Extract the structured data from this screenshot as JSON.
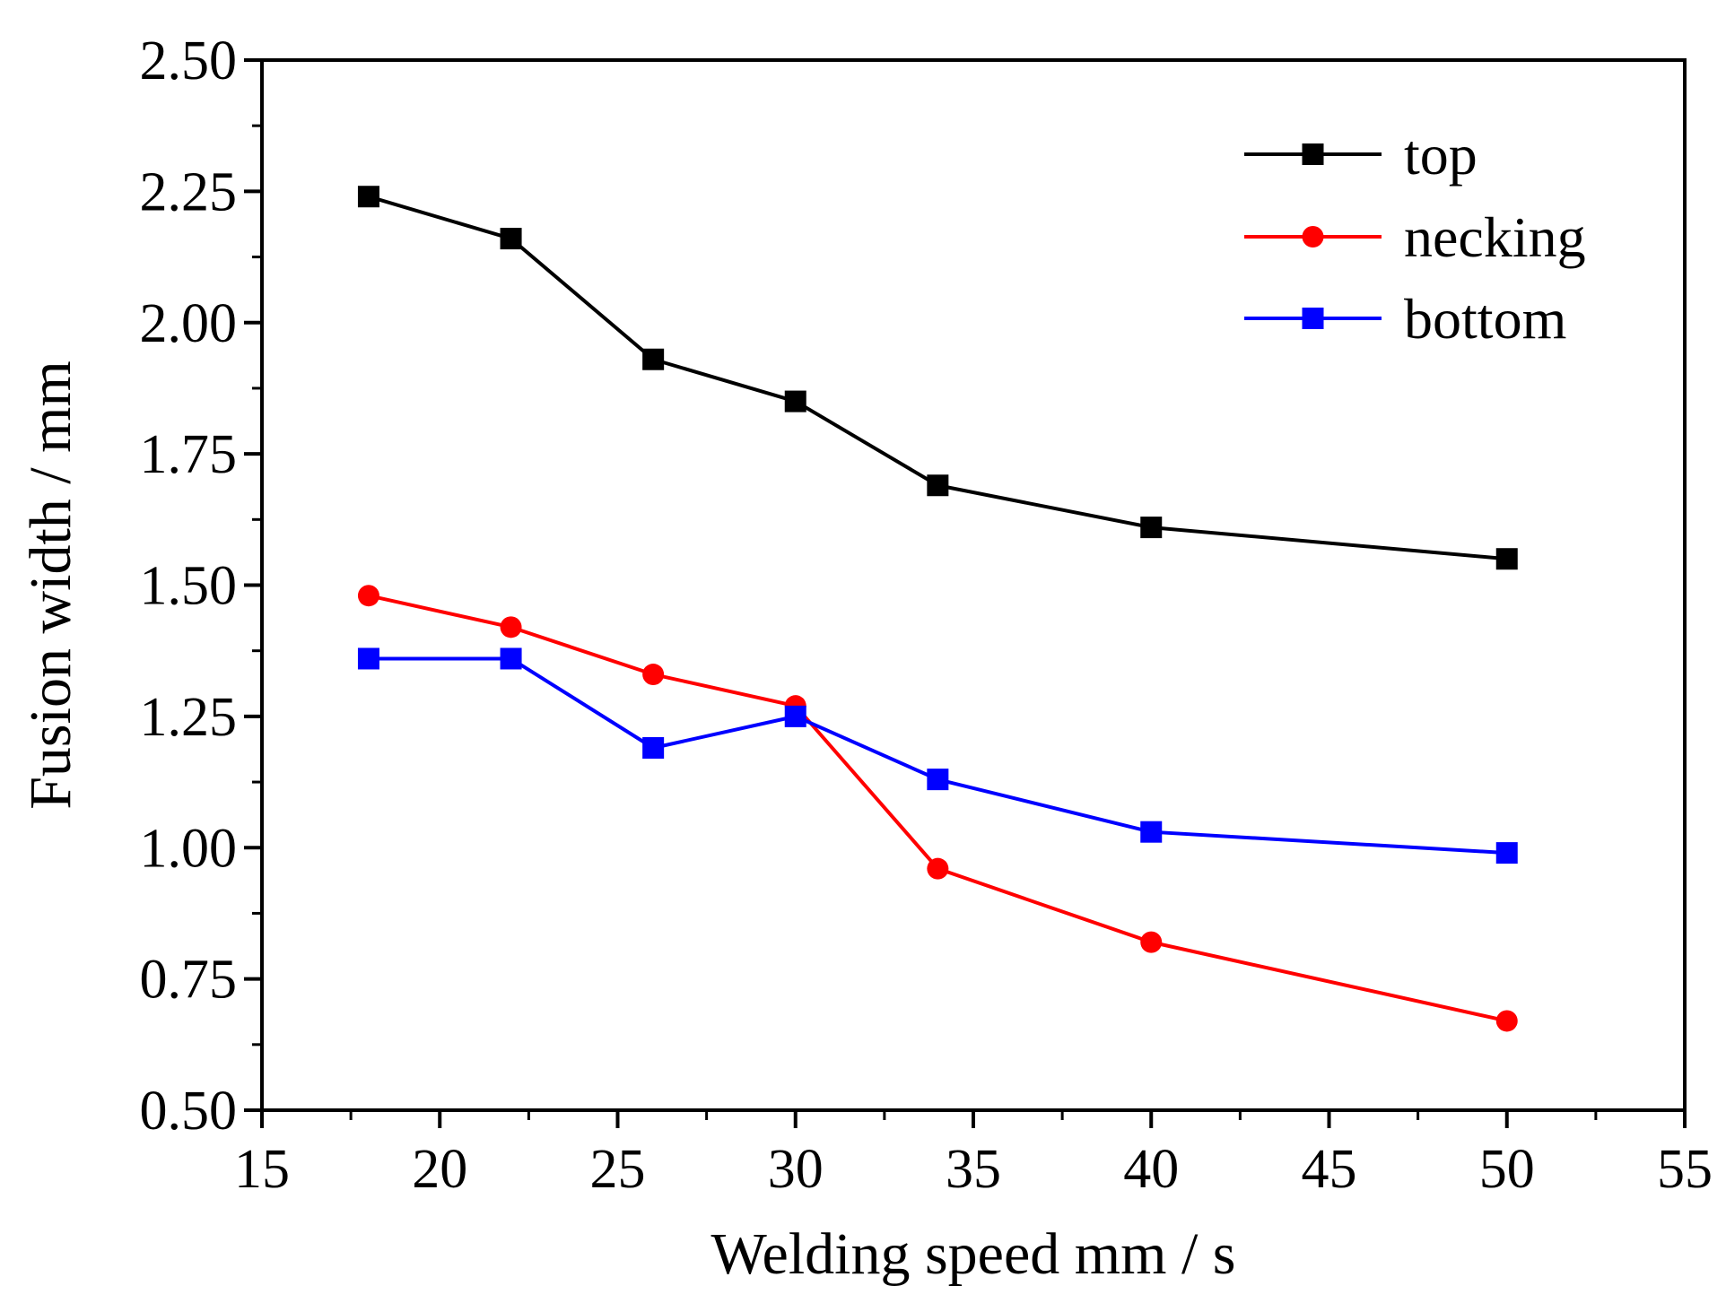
{
  "chart_data": {
    "type": "line",
    "title": "",
    "xlabel": "Welding speed mm / s",
    "ylabel": "Fusion width / mm",
    "xlim": [
      15,
      55
    ],
    "ylim": [
      0.5,
      2.5
    ],
    "xticks": [
      15,
      20,
      25,
      30,
      35,
      40,
      45,
      50,
      55
    ],
    "xtick_labels": [
      "15",
      "20",
      "25",
      "30",
      "35",
      "40",
      "45",
      "50",
      "55"
    ],
    "yticks": [
      0.5,
      0.75,
      1.0,
      1.25,
      1.5,
      1.75,
      2.0,
      2.25,
      2.5
    ],
    "ytick_labels": [
      "0.50",
      "0.75",
      "1.00",
      "1.25",
      "1.50",
      "1.75",
      "2.00",
      "2.25",
      "2.50"
    ],
    "grid": false,
    "legend_position": "top-right",
    "x": [
      18,
      22,
      26,
      30,
      34,
      40,
      50
    ],
    "series": [
      {
        "name": "top",
        "color": "#000000",
        "marker": "square",
        "values": [
          2.24,
          2.16,
          1.93,
          1.85,
          1.69,
          1.61,
          1.55
        ]
      },
      {
        "name": "necking",
        "color": "#ff0000",
        "marker": "circle",
        "values": [
          1.48,
          1.42,
          1.33,
          1.27,
          0.96,
          0.82,
          0.67
        ]
      },
      {
        "name": "bottom",
        "color": "#0000ff",
        "marker": "square",
        "values": [
          1.36,
          1.36,
          1.19,
          1.25,
          1.13,
          1.03,
          0.99
        ]
      }
    ]
  }
}
